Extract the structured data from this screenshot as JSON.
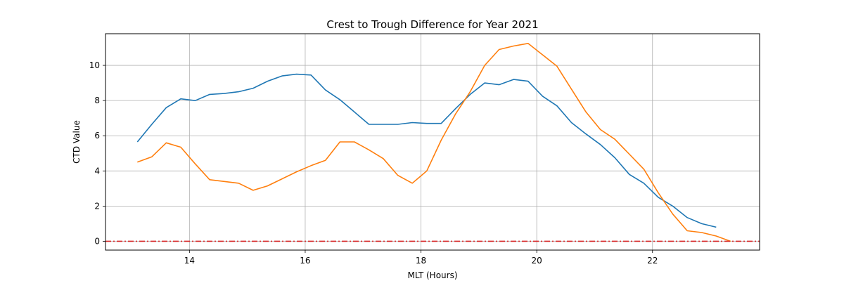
{
  "chart_data": {
    "type": "line",
    "title": "Crest to Trough Difference for Year 2021",
    "xlabel": "MLT (Hours)",
    "ylabel": "CTD Value",
    "xlim": [
      12.55,
      23.85
    ],
    "ylim": [
      -0.5,
      11.8
    ],
    "xticks": [
      14,
      16,
      18,
      20,
      22
    ],
    "yticks": [
      0,
      2,
      4,
      6,
      8,
      10
    ],
    "grid": true,
    "series": [
      {
        "color": "#1f77b4",
        "x": [
          13.1,
          13.35,
          13.6,
          13.85,
          14.1,
          14.35,
          14.6,
          14.85,
          15.1,
          15.35,
          15.6,
          15.85,
          16.1,
          16.35,
          16.6,
          16.85,
          17.1,
          17.35,
          17.6,
          17.85,
          18.1,
          18.35,
          18.6,
          18.85,
          19.1,
          19.35,
          19.6,
          19.85,
          20.1,
          20.35,
          20.6,
          20.85,
          21.1,
          21.35,
          21.6,
          21.85,
          22.1,
          22.35,
          22.6,
          22.85,
          23.1
        ],
        "y": [
          5.65,
          6.65,
          7.6,
          8.1,
          8.0,
          8.35,
          8.4,
          8.5,
          8.7,
          9.1,
          9.4,
          9.5,
          9.45,
          8.6,
          8.05,
          7.35,
          6.65,
          6.65,
          6.65,
          6.75,
          6.7,
          6.7,
          7.55,
          8.35,
          9.0,
          8.9,
          9.2,
          9.1,
          8.25,
          7.7,
          6.75,
          6.1,
          5.5,
          4.75,
          3.8,
          3.3,
          2.5,
          2.0,
          1.35,
          1.0,
          0.8
        ]
      },
      {
        "color": "#ff7f0e",
        "x": [
          13.1,
          13.35,
          13.6,
          13.85,
          14.1,
          14.35,
          14.6,
          14.85,
          15.1,
          15.35,
          15.6,
          15.85,
          16.1,
          16.35,
          16.6,
          16.85,
          17.1,
          17.35,
          17.6,
          17.85,
          18.1,
          18.35,
          18.6,
          18.85,
          19.1,
          19.35,
          19.6,
          19.85,
          20.1,
          20.35,
          20.6,
          20.85,
          21.1,
          21.35,
          21.6,
          21.85,
          22.1,
          22.35,
          22.6,
          22.85,
          23.1,
          23.35
        ],
        "y": [
          4.5,
          4.8,
          5.6,
          5.35,
          4.4,
          3.5,
          3.4,
          3.3,
          2.9,
          3.15,
          3.55,
          3.95,
          4.3,
          4.6,
          5.65,
          5.65,
          5.2,
          4.7,
          3.75,
          3.3,
          4.0,
          5.75,
          7.25,
          8.5,
          10.0,
          10.9,
          11.1,
          11.25,
          10.6,
          9.95,
          8.65,
          7.35,
          6.35,
          5.8,
          4.95,
          4.1,
          2.75,
          1.55,
          0.6,
          0.5,
          0.3,
          0.0
        ]
      }
    ],
    "reference_lines": [
      {
        "y": 0,
        "color": "#d62728",
        "style": "dash-dot"
      }
    ]
  }
}
